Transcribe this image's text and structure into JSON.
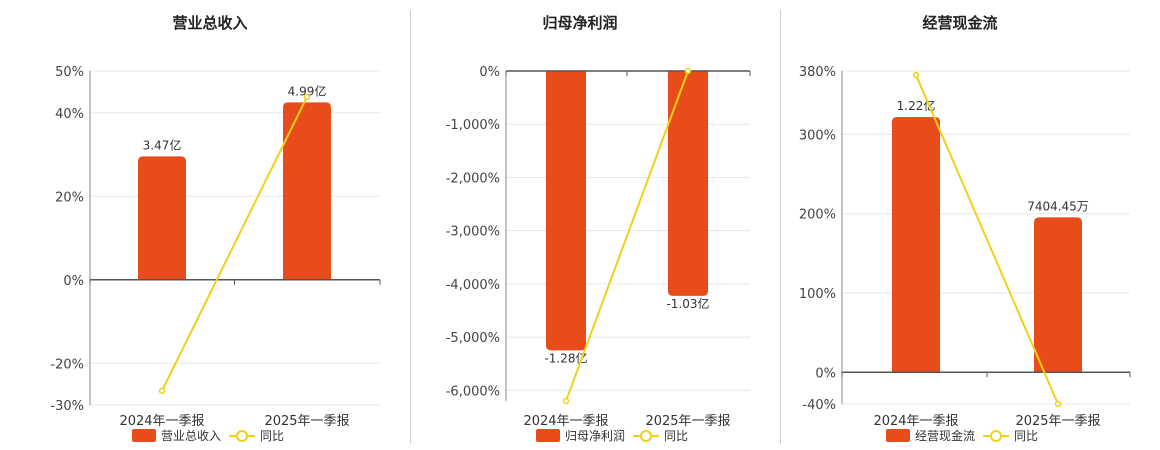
{
  "colors": {
    "bar": "#e84c1a",
    "line": "#f2d017",
    "grid": "#e3e7ee",
    "axis": "#555555"
  },
  "chart_data": [
    {
      "type": "bar",
      "title": "营业总收入",
      "categories": [
        "2024年一季报",
        "2025年一季报"
      ],
      "series": [
        {
          "name": "营业总收入",
          "values": [
            3.47,
            4.99
          ],
          "labels": [
            "3.47亿",
            "4.99亿"
          ]
        },
        {
          "name": "同比",
          "type": "line",
          "values": [
            -26.6,
            43.8
          ]
        }
      ],
      "ylim": [
        -30,
        50
      ],
      "yticks": [
        50,
        40,
        20,
        0,
        -20,
        -30
      ],
      "ytick_labels": [
        "50%",
        "40%",
        "20%",
        "0%",
        "-20%",
        "-30%"
      ],
      "legend": "bottom"
    },
    {
      "type": "bar",
      "title": "归母净利润",
      "categories": [
        "2024年一季报",
        "2025年一季报"
      ],
      "series": [
        {
          "name": "归母净利润",
          "values": [
            -1.28,
            -1.03
          ],
          "labels": [
            "-1.28亿",
            "-1.03亿"
          ]
        },
        {
          "name": "同比",
          "type": "line",
          "values": [
            -6200,
            0
          ]
        }
      ],
      "ylim": [
        -6200,
        0
      ],
      "yticks": [
        0,
        -1000,
        -2000,
        -3000,
        -4000,
        -5000,
        -6000
      ],
      "ytick_labels": [
        "0%",
        "-1,000%",
        "-2,000%",
        "-3,000%",
        "-4,000%",
        "-5,000%",
        "-6,000%"
      ],
      "legend": "bottom"
    },
    {
      "type": "bar",
      "title": "经营现金流",
      "categories": [
        "2024年一季报",
        "2025年一季报"
      ],
      "series": [
        {
          "name": "经营现金流",
          "values": [
            1.22,
            0.740445
          ],
          "labels": [
            "1.22亿",
            "7404.45万"
          ]
        },
        {
          "name": "同比",
          "type": "line",
          "values": [
            375,
            -40
          ]
        }
      ],
      "ylim": [
        -40,
        380
      ],
      "yticks": [
        380,
        300,
        200,
        100,
        0,
        -40
      ],
      "ytick_labels": [
        "380%",
        "300%",
        "200%",
        "100%",
        "0%",
        "-40%"
      ],
      "legend": "bottom"
    }
  ]
}
